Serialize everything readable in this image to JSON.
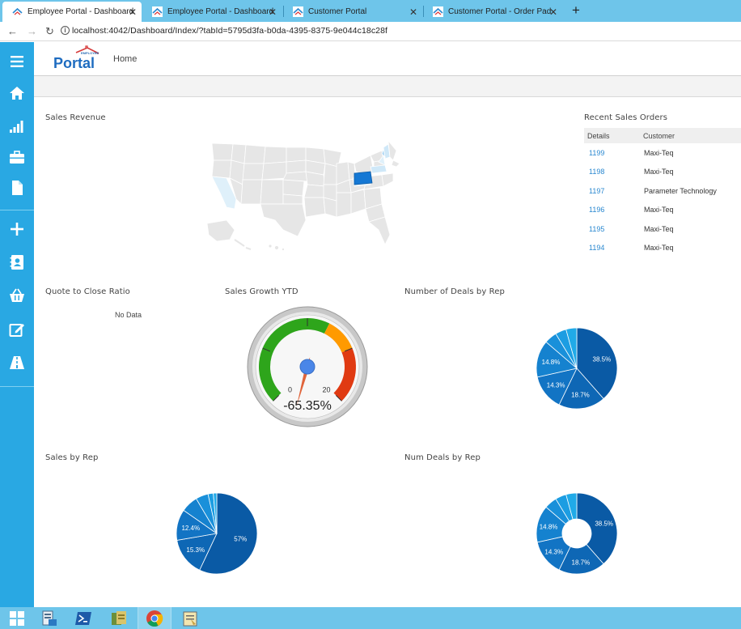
{
  "browser": {
    "tabs": [
      {
        "title": "Employee Portal - Dashboard",
        "active": true
      },
      {
        "title": "Employee Portal - Dashboard",
        "active": false
      },
      {
        "title": "Customer Portal",
        "active": false
      },
      {
        "title": "Customer Portal - Order Pad",
        "active": false
      }
    ],
    "new_tab_label": "+",
    "url": "localhost:4042/Dashboard/Index/?tabId=5795d3fa-b0da-4395-8375-9e044c18c28f"
  },
  "header": {
    "logo_text": "Portal",
    "logo_small": "EMPLOYEE",
    "home_label": "Home"
  },
  "sidebar": {
    "icons": [
      "menu-icon",
      "home-icon",
      "bar-chart-icon",
      "briefcase-icon",
      "document-icon",
      "plus-icon",
      "contacts-icon",
      "basket-icon",
      "edit-icon",
      "road-icon"
    ]
  },
  "sections": {
    "sales_revenue": "Sales Revenue",
    "recent_orders": "Recent Sales Orders",
    "quote_ratio": "Quote to Close Ratio",
    "sales_growth": "Sales Growth YTD",
    "deals_by_rep": "Number of Deals by Rep",
    "sales_by_rep": "Sales by Rep",
    "num_deals_by_rep": "Num Deals by Rep"
  },
  "orders": {
    "headers": [
      "Details",
      "Customer"
    ],
    "rows": [
      {
        "id": "1199",
        "customer": "Maxi-Teq"
      },
      {
        "id": "1198",
        "customer": "Maxi-Teq"
      },
      {
        "id": "1197",
        "customer": "Parameter Technology"
      },
      {
        "id": "1196",
        "customer": "Maxi-Teq"
      },
      {
        "id": "1195",
        "customer": "Maxi-Teq"
      },
      {
        "id": "1194",
        "customer": "Maxi-Teq"
      }
    ]
  },
  "quote_ratio_value": "No Data",
  "colors": {
    "accent": "#29a8e3",
    "chrome": "#6ec5ea",
    "dark_blue": "#0a5aa5",
    "mid_blue": "#1274c4",
    "light_blue": "#1a9ae0",
    "gauge_green": "#2ea51b",
    "gauge_orange": "#ff9a00",
    "gauge_red": "#e03a12"
  },
  "chart_data": [
    {
      "type": "gauge",
      "title": "Sales Growth YTD",
      "value": -65.35,
      "value_label": "-65.35%",
      "min": 0,
      "max": 20,
      "min_label": "0",
      "max_label": "20",
      "bands": [
        {
          "from": 0,
          "to": 12,
          "color": "#2ea51b"
        },
        {
          "from": 12,
          "to": 15,
          "color": "#ff9a00"
        },
        {
          "from": 15,
          "to": 20,
          "color": "#e03a12"
        }
      ]
    },
    {
      "type": "pie",
      "title": "Number of Deals by Rep",
      "values": [
        38.5,
        18.7,
        14.3,
        14.8,
        5.0,
        4.4,
        4.3
      ],
      "labels": [
        "38.5%",
        "18.7%",
        "14.3%",
        "14.8%",
        "",
        "",
        ""
      ],
      "colors": [
        "#0a5aa5",
        "#0e67b5",
        "#1274c4",
        "#1582cf",
        "#1990da",
        "#1c9de2",
        "#20aae8"
      ]
    },
    {
      "type": "pie",
      "title": "Sales by Rep",
      "values": [
        57,
        15.3,
        12.4,
        6.8,
        5.0,
        2.1,
        1.4
      ],
      "labels": [
        "57%",
        "15.3%",
        "12.4%",
        "",
        "",
        "",
        ""
      ],
      "colors": [
        "#0a5aa5",
        "#0e67b5",
        "#1274c4",
        "#1582cf",
        "#1990da",
        "#1c9de2",
        "#20aae8"
      ]
    },
    {
      "type": "donut",
      "title": "Num Deals by Rep",
      "values": [
        38.5,
        18.7,
        14.3,
        14.8,
        5.0,
        4.4,
        4.3
      ],
      "labels": [
        "38.5%",
        "18.7%",
        "14.3%",
        "14.8%",
        "",
        "",
        ""
      ],
      "colors": [
        "#0a5aa5",
        "#0e67b5",
        "#1274c4",
        "#1582cf",
        "#1990da",
        "#1c9de2",
        "#20aae8"
      ]
    }
  ]
}
